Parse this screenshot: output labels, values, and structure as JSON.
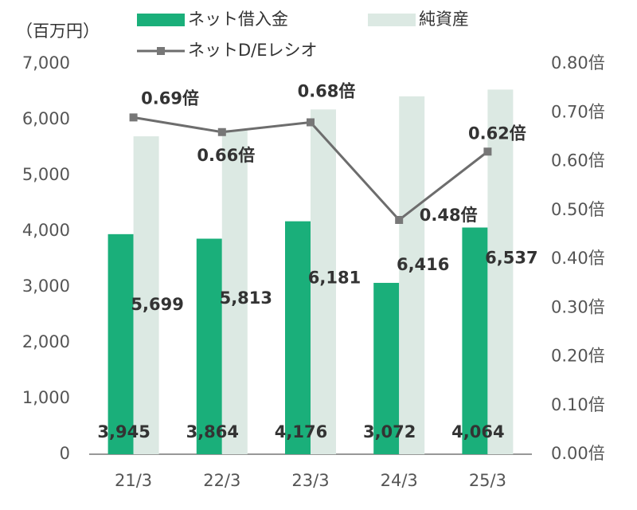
{
  "chart_data": {
    "type": "bar-line",
    "unit_label": "（百万円）",
    "categories": [
      "21/3",
      "22/3",
      "23/3",
      "24/3",
      "25/3"
    ],
    "series": [
      {
        "name": "ネット借入金",
        "color": "#1aaf7a",
        "type": "bar",
        "values": [
          3945,
          3864,
          4176,
          3072,
          4064
        ],
        "value_labels": [
          "3,945",
          "3,864",
          "4,176",
          "3,072",
          "4,064"
        ]
      },
      {
        "name": "純資産",
        "color": "#dce9e3",
        "type": "bar",
        "values": [
          5699,
          5813,
          6181,
          6416,
          6537
        ],
        "value_labels": [
          "5,699",
          "5,813",
          "6,181",
          "6,416",
          "6,537"
        ]
      },
      {
        "name": "ネットD/Eレシオ",
        "color": "#6d6d6d",
        "type": "line",
        "axis": "y2",
        "values": [
          0.69,
          0.66,
          0.68,
          0.48,
          0.62
        ],
        "value_labels": [
          "0.69倍",
          "0.66倍",
          "0.68倍",
          "0.48倍",
          "0.62倍"
        ]
      }
    ],
    "ylim": [
      0,
      7000
    ],
    "yticks": [
      0,
      {
        "value": 1000,
        "label": "1,000"
      },
      {
        "value": 2000,
        "label": "2,000"
      },
      {
        "value": 3000,
        "label": "3,000"
      },
      {
        "value": 4000,
        "label": "4,000"
      },
      {
        "value": 5000,
        "label": "5,000"
      },
      {
        "value": 6000,
        "label": "6,000"
      },
      {
        "value": 7000,
        "label": "7,000"
      }
    ],
    "y2lim": [
      0,
      0.8
    ],
    "y2ticks": [
      {
        "value": 0,
        "label": "0.00倍"
      },
      {
        "value": 0.1,
        "label": "0.10倍"
      },
      {
        "value": 0.2,
        "label": "0.20倍"
      },
      {
        "value": 0.3,
        "label": "0.30倍"
      },
      {
        "value": 0.4,
        "label": "0.40倍"
      },
      {
        "value": 0.5,
        "label": "0.50倍"
      },
      {
        "value": 0.6,
        "label": "0.60倍"
      },
      {
        "value": 0.7,
        "label": "0.70倍"
      },
      {
        "value": 0.8,
        "label": "0.80倍"
      }
    ],
    "grid": false
  }
}
